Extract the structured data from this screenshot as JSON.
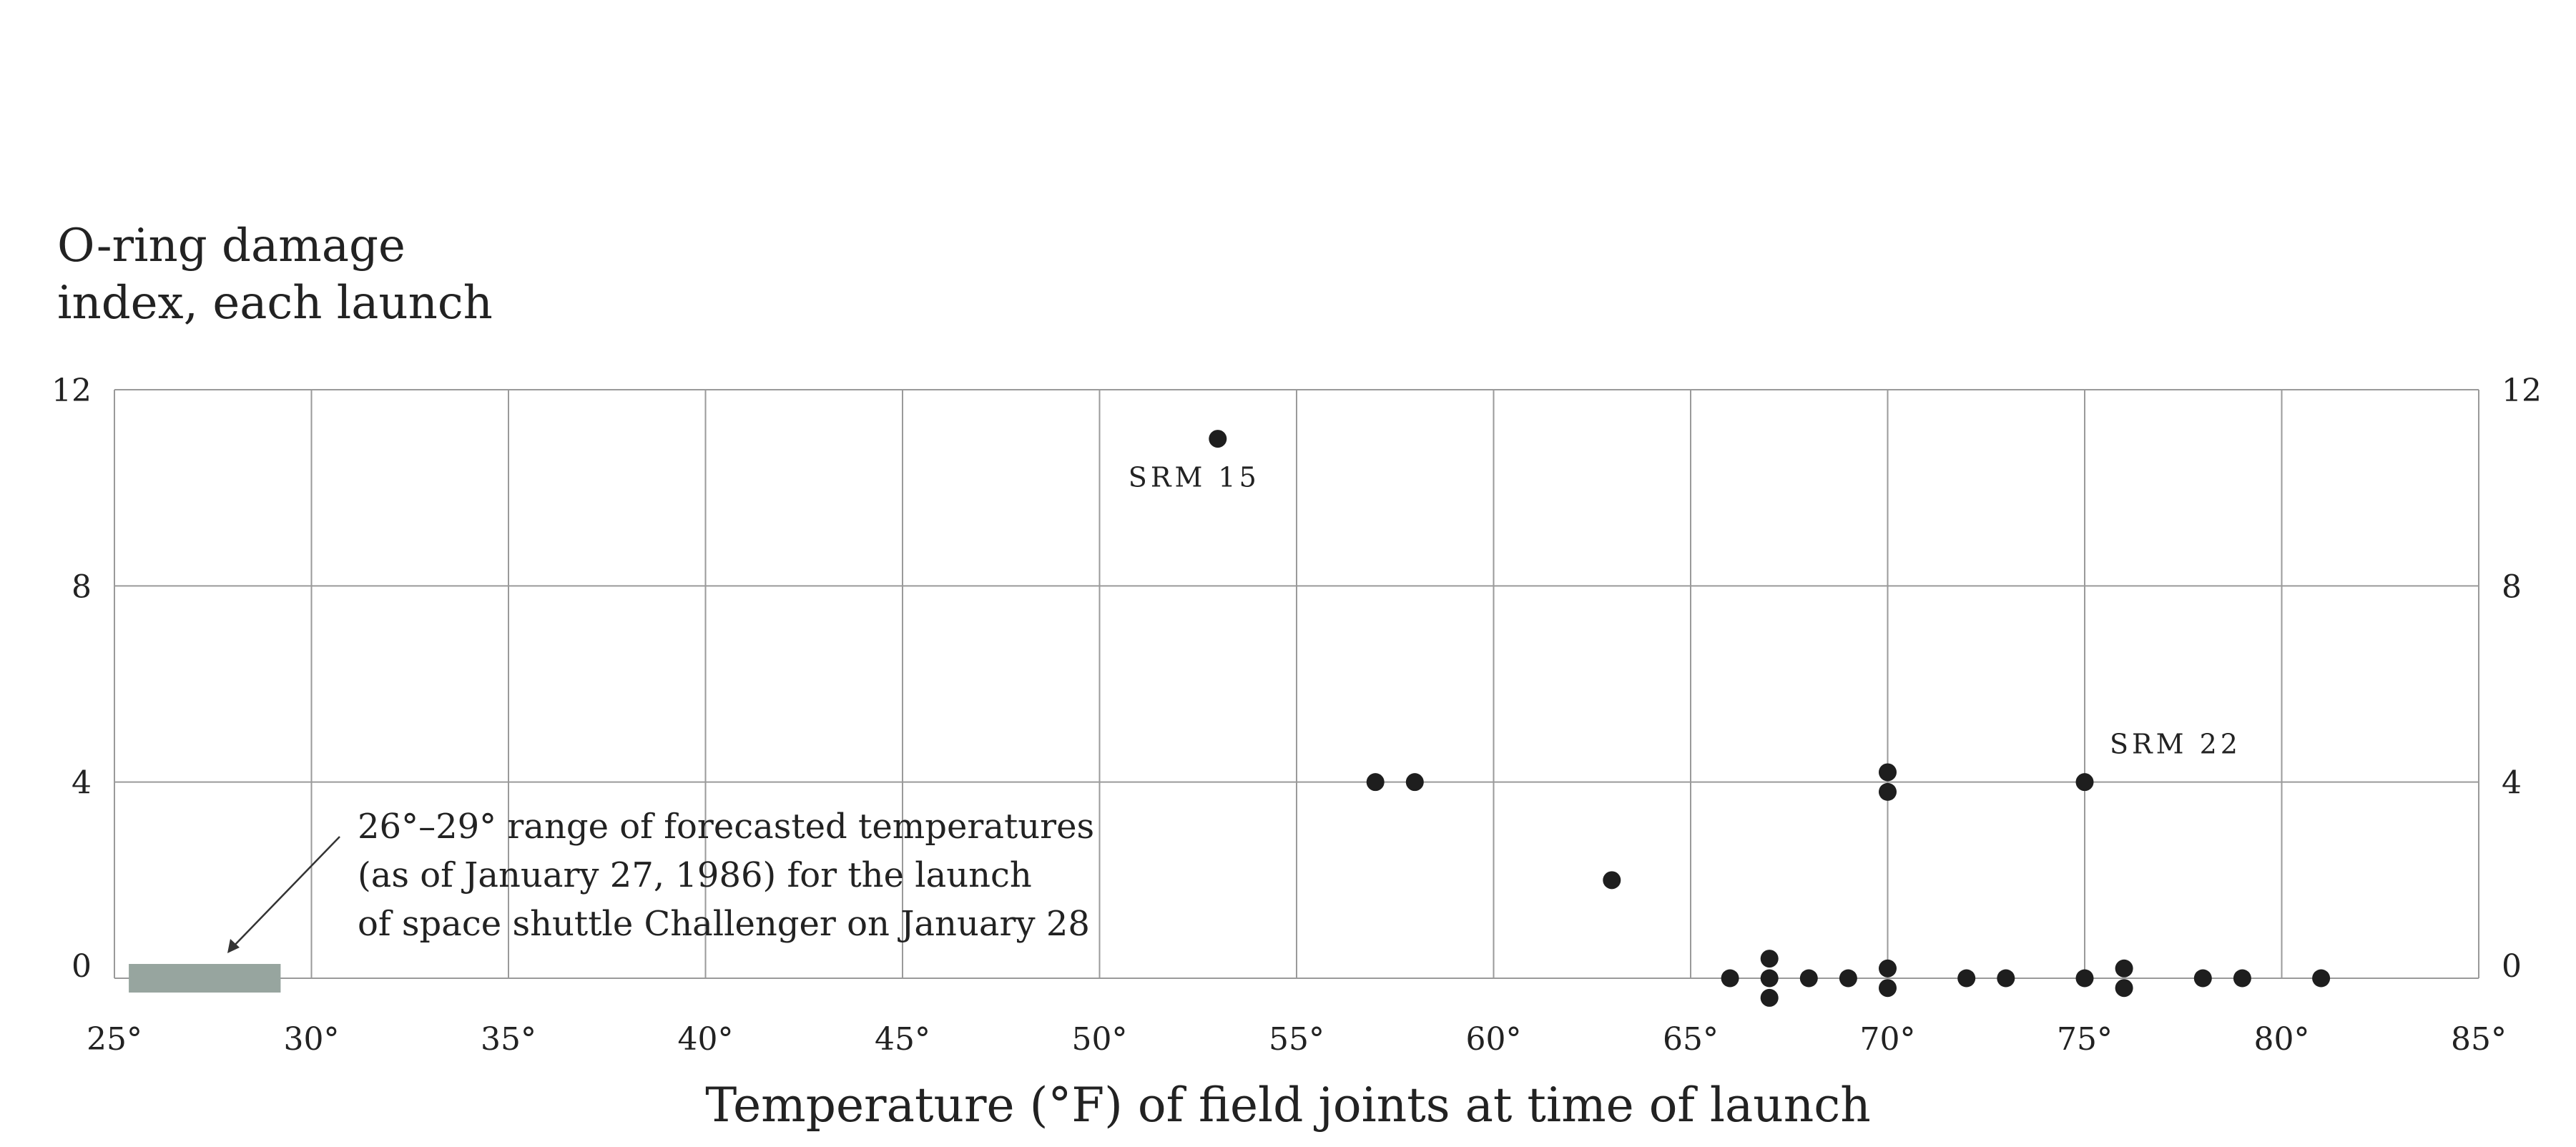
{
  "chart_data": {
    "type": "scatter",
    "title": "",
    "ylabel_lines": [
      "O-ring damage",
      "index, each launch"
    ],
    "xlabel": "Temperature (°F) of field joints at time of launch",
    "xlim": [
      25,
      85
    ],
    "ylim": [
      0,
      12
    ],
    "x_ticks": [
      25,
      30,
      35,
      40,
      45,
      50,
      55,
      60,
      65,
      70,
      75,
      80,
      85
    ],
    "x_tick_labels": [
      "25°",
      "30°",
      "35°",
      "40°",
      "45°",
      "50°",
      "55°",
      "60°",
      "65°",
      "70°",
      "75°",
      "80°",
      "85°"
    ],
    "y_ticks": [
      0,
      4,
      8,
      12
    ],
    "y_tick_labels": [
      "0",
      "4",
      "8",
      "12"
    ],
    "grid": true,
    "points": [
      {
        "x": 53,
        "y": 11
      },
      {
        "x": 57,
        "y": 4
      },
      {
        "x": 58,
        "y": 4
      },
      {
        "x": 63,
        "y": 2
      },
      {
        "x": 66,
        "y": 0
      },
      {
        "x": 67,
        "y": 0.4
      },
      {
        "x": 67,
        "y": 0
      },
      {
        "x": 67,
        "y": -0.4
      },
      {
        "x": 68,
        "y": 0
      },
      {
        "x": 69,
        "y": 0
      },
      {
        "x": 70,
        "y": 4.2
      },
      {
        "x": 70,
        "y": 3.8
      },
      {
        "x": 70,
        "y": 0.2
      },
      {
        "x": 70,
        "y": -0.2
      },
      {
        "x": 72,
        "y": 0
      },
      {
        "x": 73,
        "y": 0
      },
      {
        "x": 75,
        "y": 4
      },
      {
        "x": 75,
        "y": 0
      },
      {
        "x": 76,
        "y": 0.2
      },
      {
        "x": 76,
        "y": -0.2
      },
      {
        "x": 78,
        "y": 0
      },
      {
        "x": 79,
        "y": 0
      },
      {
        "x": 81,
        "y": 0
      }
    ],
    "point_labels": [
      {
        "text": "SRM 15",
        "x": 53,
        "y": 11
      },
      {
        "text": "SRM 22",
        "x": 75,
        "y": 4
      }
    ],
    "forecast_range": {
      "x_from": 26,
      "x_to": 29,
      "color": "#97a59f",
      "note_lines": [
        "26°–29° range of forecasted temperatures",
        "(as of January 27, 1986) for the launch",
        "of space shuttle Challenger on January 28"
      ]
    },
    "colors": {
      "point": "#1e1e1e",
      "grid": "#9a9a9a",
      "text": "#222222"
    }
  }
}
